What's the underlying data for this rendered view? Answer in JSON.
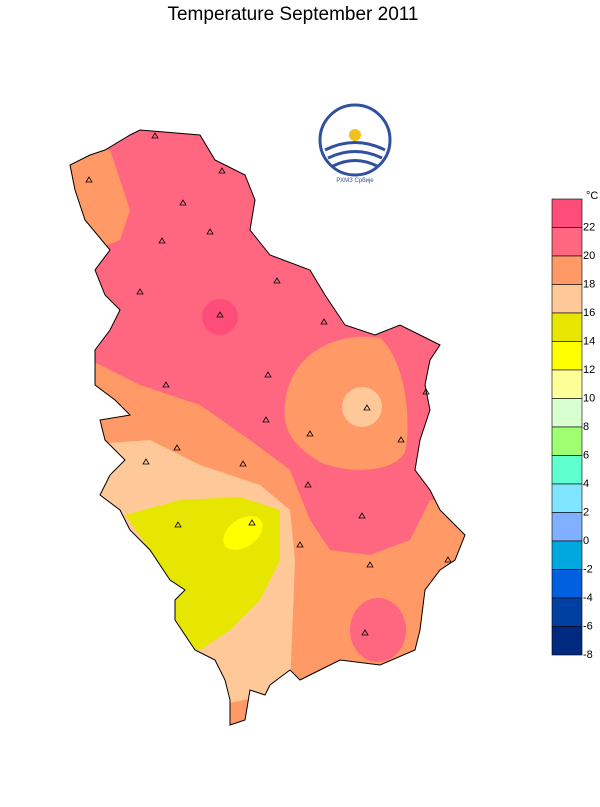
{
  "title": "Temperature  September  2011",
  "logo_text": "РХМЗ Србије",
  "legend": {
    "unit": "°C",
    "colors": [
      "#ff4d79",
      "#ff6680",
      "#ff9966",
      "#ffc898",
      "#e6e600",
      "#ffff00",
      "#ffff99",
      "#d8ffd0",
      "#a0ff70",
      "#60ffd0",
      "#80e6ff",
      "#80b0ff",
      "#00a8e0",
      "#0060e0",
      "#0040a0",
      "#002a80"
    ],
    "labels": [
      22,
      20,
      18,
      16,
      14,
      12,
      10,
      8,
      6,
      4,
      2,
      0,
      -2,
      -4,
      -6,
      -8
    ]
  }
}
